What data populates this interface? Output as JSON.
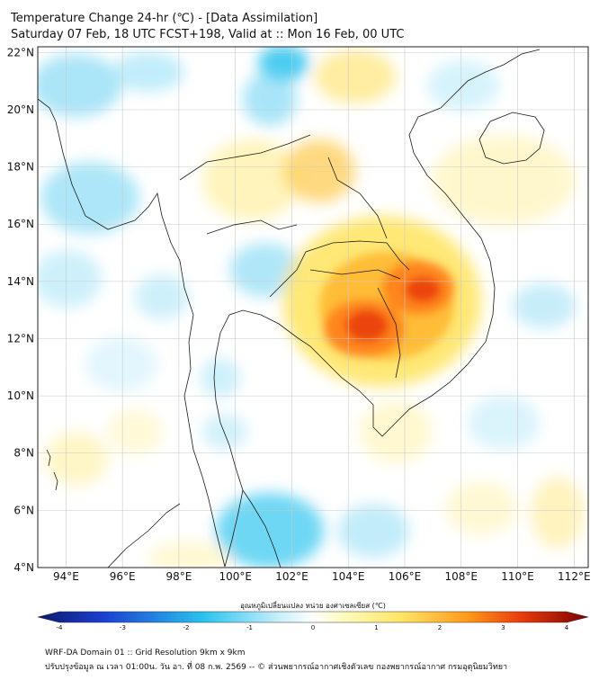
{
  "header": {
    "title": "Temperature Change 24-hr (℃) - [Data Assimilation]",
    "subtitle": "Saturday 07 Feb, 18 UTC FCST+198, Valid at :: Mon 16 Feb, 00 UTC"
  },
  "map": {
    "lat_labels": [
      "22°N",
      "20°N",
      "18°N",
      "16°N",
      "14°N",
      "12°N",
      "10°N",
      "8°N",
      "6°N",
      "4°N"
    ],
    "lon_labels": [
      "94°E",
      "96°E",
      "98°E",
      "100°E",
      "102°E",
      "104°E",
      "106°E",
      "108°E",
      "110°E",
      "112°E"
    ],
    "lat_values": [
      22,
      20,
      18,
      16,
      14,
      12,
      10,
      8,
      6,
      4
    ],
    "lon_values": [
      94,
      96,
      98,
      100,
      102,
      104,
      106,
      108,
      110,
      112
    ],
    "lon_range": [
      93.0,
      112.5
    ],
    "lat_range": [
      4.0,
      22.2
    ],
    "colors": {
      "cold_extreme": "#0a1a6e",
      "cold": "#29c3ee",
      "neutral": "#ffffff",
      "warm": "#ffe566",
      "hot": "#e83a0c",
      "hot_extreme": "#7a0000",
      "coast": "#1a1a1a",
      "grid": "#c9c9c9"
    }
  },
  "colorbar": {
    "title": "อุณหภูมิเปลี่ยนแปลง หน่วย องศาเซลเซียส (℃)",
    "ticks": [
      "-4",
      "-3",
      "-2",
      "-1",
      "0",
      "1",
      "2",
      "3",
      "4"
    ],
    "tick_values": [
      -4,
      -3,
      -2,
      -1,
      0,
      1,
      2,
      3,
      4
    ],
    "min": -4,
    "max": 4
  },
  "footer": {
    "line1": "WRF-DA Domain 01 :: Grid Resolution 9km x 9km",
    "line2": "ปรับปรุงข้อมูล ณ เวลา 01:00น. วัน อา. ที่ 08 ก.พ. 2569 -- © ส่วนพยากรณ์อากาศเชิงตัวเลข กองพยากรณ์อากาศ กรมอุตุนิยมวิทยา"
  }
}
